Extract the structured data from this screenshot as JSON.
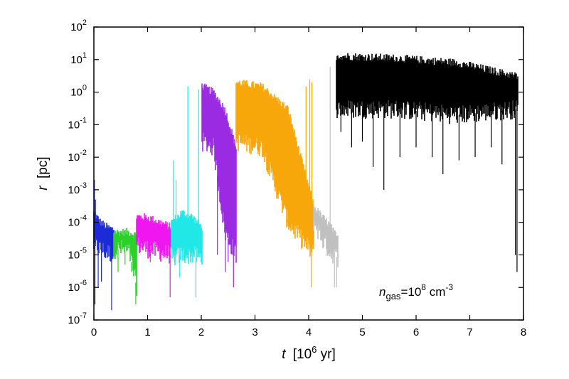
{
  "chart_data": {
    "type": "area",
    "x_axis": {
      "label_var": "t",
      "label_unit_prefix": "[10",
      "label_unit_exp": "6",
      "label_unit_suffix": " yr]",
      "range": [
        0,
        8
      ],
      "ticks": [
        0,
        1,
        2,
        3,
        4,
        5,
        6,
        7,
        8
      ],
      "tick_labels": [
        "0",
        "1",
        "2",
        "3",
        "4",
        "5",
        "6",
        "7",
        "8"
      ]
    },
    "y_axis": {
      "label_var": "r",
      "label_unit": "[pc]",
      "scale": "log",
      "range": [
        1e-07,
        100
      ],
      "tick_exponents": [
        -7,
        -6,
        -5,
        -4,
        -3,
        -2,
        -1,
        0,
        1,
        2
      ]
    },
    "grid": false,
    "annotation": {
      "var": "n",
      "sub": "gas",
      "eq": "=10",
      "exp1": "8",
      "unit": " cm",
      "exp2": "-3",
      "position": "bottom-right"
    },
    "series": [
      {
        "color": "#1c2bd6",
        "t_start": 0.0,
        "t_end": 0.38,
        "upper": [
          0.0002,
          0.0001,
          7e-05,
          6e-05
        ],
        "lower": [
          2e-05,
          1.5e-05,
          1.2e-05,
          1e-05
        ],
        "spikes_up": [
          [
            0.01,
            0.002
          ],
          [
            0.03,
            0.0005
          ]
        ],
        "spikes_down": [
          [
            0.02,
            3e-07
          ],
          [
            0.08,
            1e-06
          ],
          [
            0.14,
            1.5e-06
          ],
          [
            0.22,
            8e-06
          ],
          [
            0.33,
            2e-07
          ]
        ]
      },
      {
        "color": "#2bd12b",
        "t_start": 0.38,
        "t_end": 0.8,
        "upper": [
          5e-05,
          5e-05,
          5e-05,
          4e-05
        ],
        "lower": [
          1.5e-05,
          1.5e-05,
          1.2e-05,
          1e-06
        ],
        "spikes_up": [],
        "spikes_down": [
          [
            0.45,
            3e-06
          ],
          [
            0.58,
            5e-06
          ],
          [
            0.7,
            3e-06
          ],
          [
            0.78,
            3e-07
          ]
        ]
      },
      {
        "color": "#ef16ef",
        "t_start": 0.8,
        "t_end": 1.45,
        "upper": [
          0.00015,
          0.00014,
          0.0001,
          7e-05
        ],
        "lower": [
          2e-05,
          1.5e-05,
          1.2e-05,
          1e-05
        ],
        "spikes_up": [],
        "spikes_down": [
          [
            1.05,
            6e-06
          ],
          [
            1.3,
            8e-06
          ],
          [
            1.42,
            5e-07
          ]
        ]
      },
      {
        "color": "#22e7e7",
        "t_start": 1.45,
        "t_end": 2.02,
        "upper": [
          0.0001,
          0.0002,
          0.00015,
          7e-05
        ],
        "lower": [
          8e-06,
          1e-05,
          1e-05,
          8e-06
        ],
        "spikes_up": [
          [
            1.48,
            0.008
          ],
          [
            1.53,
            0.002
          ],
          [
            1.75,
            1.5
          ],
          [
            1.95,
            1.2
          ]
        ],
        "spikes_down": [
          [
            1.5,
            6e-06
          ],
          [
            1.6,
            2e-06
          ],
          [
            1.9,
            5e-07
          ]
        ]
      },
      {
        "color": "#9b2be3",
        "t_start": 2.02,
        "t_end": 2.65,
        "upper": [
          1.5,
          1.0,
          0.3,
          0.02
        ],
        "lower": [
          0.03,
          0.02,
          5e-05,
          1e-05
        ],
        "spikes_up": [],
        "spikes_down": [
          [
            2.3,
            1e-05
          ],
          [
            2.45,
            3e-06
          ],
          [
            2.5,
            6e-06
          ],
          [
            2.6,
            1e-06
          ]
        ]
      },
      {
        "color": "#f7a70a",
        "t_start": 2.65,
        "t_end": 4.1,
        "upper": [
          2.0,
          1.5,
          0.3,
          0.0003
        ],
        "lower": [
          0.03,
          0.02,
          0.0001,
          1e-05
        ],
        "spikes_up": [
          [
            3.95,
            1.5
          ],
          [
            4.02,
            2.5
          ],
          [
            4.06,
            2.0
          ]
        ],
        "spikes_down": [
          [
            3.3,
            0.006
          ],
          [
            3.6,
            0.0001
          ],
          [
            3.95,
            2e-05
          ],
          [
            4.05,
            1e-06
          ]
        ]
      },
      {
        "color": "#c0c0c0",
        "t_start": 4.1,
        "t_end": 4.55,
        "upper": [
          0.0003,
          0.00015,
          8e-05,
          3e-05
        ],
        "lower": [
          0.0001,
          3e-05,
          1.2e-05,
          8e-06
        ],
        "spikes_up": [
          [
            4.4,
            6.0
          ]
        ],
        "spikes_down": [
          [
            4.48,
            1e-06
          ],
          [
            4.52,
            1e-06
          ]
        ]
      },
      {
        "color": "#000000",
        "t_start": 4.52,
        "t_end": 7.9,
        "upper": [
          13,
          11,
          8,
          3
        ],
        "lower": [
          0.3,
          0.3,
          0.2,
          0.3
        ],
        "spikes_up": [],
        "spikes_down": [
          [
            4.6,
            0.06
          ],
          [
            4.8,
            0.02
          ],
          [
            5.0,
            0.03
          ],
          [
            5.2,
            0.005
          ],
          [
            5.4,
            0.001
          ],
          [
            5.7,
            0.01
          ],
          [
            6.0,
            0.02
          ],
          [
            6.3,
            0.01
          ],
          [
            6.5,
            0.003
          ],
          [
            6.8,
            0.008
          ],
          [
            7.1,
            0.01
          ],
          [
            7.4,
            0.02
          ],
          [
            7.6,
            0.006
          ],
          [
            7.85,
            1e-05
          ],
          [
            7.88,
            3e-06
          ]
        ]
      }
    ]
  }
}
